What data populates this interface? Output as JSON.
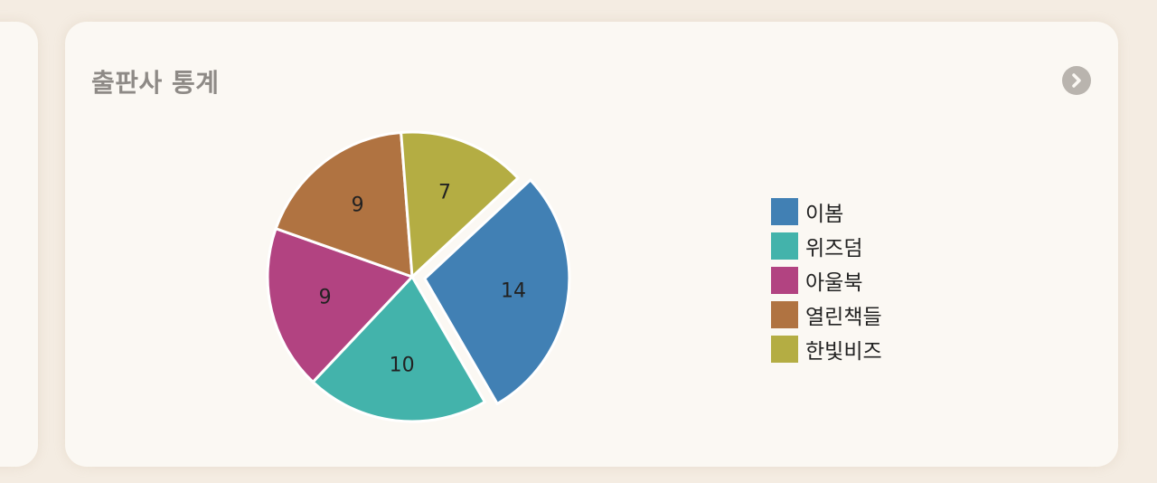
{
  "card": {
    "title": "출판사 통계"
  },
  "icons": {
    "next": "chevron-right-icon"
  },
  "chart_data": {
    "type": "pie",
    "categories": [
      "이봄",
      "위즈덤",
      "아울북",
      "열린책들",
      "한빛비즈"
    ],
    "values": [
      14,
      10,
      9,
      9,
      7
    ],
    "colors": [
      "#4180b4",
      "#43b3ab",
      "#b24381",
      "#b07341",
      "#b4ad43"
    ],
    "exploded": "이봄",
    "data_labels": true,
    "legend_placement": "right"
  }
}
